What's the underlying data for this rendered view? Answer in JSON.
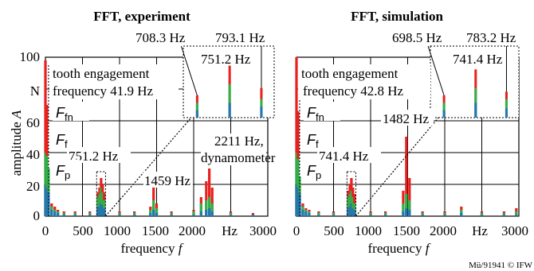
{
  "figure": {
    "ylabel_main": "amplitude ",
    "ylabel_var": "A",
    "xlabel_main": "frequency ",
    "xlabel_var": "f",
    "copyright": "Mü/91941 © IFW",
    "y_ticks": [
      "100",
      "N",
      "60",
      "40",
      "20",
      "0"
    ],
    "x_ticks": [
      "0",
      "500",
      "1000",
      "1500",
      "2000",
      "Hz",
      "3000"
    ]
  },
  "colors": {
    "fn": "#e8201e",
    "f": "#2db34a",
    "p": "#1f78b4",
    "grid": "#000000"
  },
  "chart_data": [
    {
      "type": "bar",
      "title": "FFT, experiment",
      "xlabel": "frequency f",
      "ylabel": "amplitude A",
      "xlim": [
        0,
        3000
      ],
      "ylim": [
        0,
        100
      ],
      "series_names": [
        "Ffn",
        "Ff",
        "Fp"
      ],
      "labels": {
        "mesh": "tooth engagement",
        "mesh2": "frequency 41.9 Hz",
        "mesh_line_y": "—",
        "peak_main": "751.2 Hz",
        "peak_2": "1459 Hz",
        "peak_3": "2211 Hz,",
        "peak_3b": "dynamometer",
        "inset_left": "708.3 Hz",
        "inset_right": "793.1 Hz",
        "inset_center": "751.2 Hz"
      },
      "peaks": [
        {
          "x": 0,
          "fn": 98,
          "f": 40,
          "p": 20
        },
        {
          "x": 20,
          "fn": 70,
          "f": 38,
          "p": 18
        },
        {
          "x": 42,
          "fn": 22,
          "f": 30,
          "p": 15
        },
        {
          "x": 84,
          "fn": 8,
          "f": 6,
          "p": 4
        },
        {
          "x": 126,
          "fn": 6,
          "f": 4,
          "p": 3
        },
        {
          "x": 168,
          "fn": 4,
          "f": 3,
          "p": 2
        },
        {
          "x": 250,
          "fn": 3,
          "f": 2,
          "p": 1
        },
        {
          "x": 400,
          "fn": 3,
          "f": 2,
          "p": 1
        },
        {
          "x": 600,
          "fn": 3,
          "f": 2,
          "p": 1
        },
        {
          "x": 708,
          "fn": 15,
          "f": 12,
          "p": 6
        },
        {
          "x": 730,
          "fn": 18,
          "f": 14,
          "p": 6
        },
        {
          "x": 751,
          "fn": 24,
          "f": 18,
          "p": 8
        },
        {
          "x": 772,
          "fn": 20,
          "f": 15,
          "p": 7
        },
        {
          "x": 793,
          "fn": 15,
          "f": 10,
          "p": 5
        },
        {
          "x": 1000,
          "fn": 3,
          "f": 2,
          "p": 1
        },
        {
          "x": 1200,
          "fn": 3,
          "f": 2,
          "p": 1
        },
        {
          "x": 1417,
          "fn": 6,
          "f": 4,
          "p": 2
        },
        {
          "x": 1459,
          "fn": 20,
          "f": 10,
          "p": 4
        },
        {
          "x": 1500,
          "fn": 8,
          "f": 5,
          "p": 2
        },
        {
          "x": 1700,
          "fn": 3,
          "f": 2,
          "p": 1
        },
        {
          "x": 2000,
          "fn": 4,
          "f": 3,
          "p": 1
        },
        {
          "x": 2100,
          "fn": 12,
          "f": 8,
          "p": 3
        },
        {
          "x": 2170,
          "fn": 22,
          "f": 10,
          "p": 4
        },
        {
          "x": 2211,
          "fn": 30,
          "f": 12,
          "p": 5
        },
        {
          "x": 2250,
          "fn": 18,
          "f": 8,
          "p": 3
        },
        {
          "x": 2500,
          "fn": 3,
          "f": 2,
          "p": 1
        },
        {
          "x": 2800,
          "fn": 2,
          "f": 1,
          "p": 1
        }
      ],
      "inset": {
        "xlim": [
          690,
          810
        ],
        "peaks": [
          {
            "x": 708.3,
            "fn": 12,
            "f": 8,
            "p": 4
          },
          {
            "x": 751.2,
            "fn": 28,
            "f": 18,
            "p": 8
          },
          {
            "x": 793.1,
            "fn": 16,
            "f": 10,
            "p": 6
          }
        ]
      }
    },
    {
      "type": "bar",
      "title": "FFT, simulation",
      "xlabel": "frequency f",
      "ylabel": "amplitude A",
      "xlim": [
        0,
        3000
      ],
      "ylim": [
        0,
        100
      ],
      "series_names": [
        "Ffn",
        "Ff",
        "Fp"
      ],
      "labels": {
        "mesh": "tooth engagement",
        "mesh2": "frequency 42.8 Hz",
        "peak_main": "741.4 Hz",
        "peak_2": "1482 Hz",
        "inset_left": "698.5 Hz",
        "inset_right": "783.2 Hz",
        "inset_center": "741.4 Hz"
      },
      "peaks": [
        {
          "x": 0,
          "fn": 100,
          "f": 40,
          "p": 20
        },
        {
          "x": 21,
          "fn": 66,
          "f": 36,
          "p": 18
        },
        {
          "x": 43,
          "fn": 20,
          "f": 25,
          "p": 14
        },
        {
          "x": 86,
          "fn": 8,
          "f": 6,
          "p": 4
        },
        {
          "x": 128,
          "fn": 5,
          "f": 4,
          "p": 3
        },
        {
          "x": 171,
          "fn": 4,
          "f": 3,
          "p": 2
        },
        {
          "x": 300,
          "fn": 3,
          "f": 2,
          "p": 1
        },
        {
          "x": 500,
          "fn": 3,
          "f": 2,
          "p": 1
        },
        {
          "x": 698,
          "fn": 16,
          "f": 12,
          "p": 5
        },
        {
          "x": 720,
          "fn": 20,
          "f": 14,
          "p": 6
        },
        {
          "x": 741,
          "fn": 24,
          "f": 16,
          "p": 8
        },
        {
          "x": 762,
          "fn": 18,
          "f": 12,
          "p": 5
        },
        {
          "x": 783,
          "fn": 14,
          "f": 8,
          "p": 4
        },
        {
          "x": 1000,
          "fn": 3,
          "f": 2,
          "p": 1
        },
        {
          "x": 1200,
          "fn": 3,
          "f": 2,
          "p": 1
        },
        {
          "x": 1440,
          "fn": 16,
          "f": 8,
          "p": 3
        },
        {
          "x": 1482,
          "fn": 50,
          "f": 14,
          "p": 5
        },
        {
          "x": 1525,
          "fn": 24,
          "f": 10,
          "p": 4
        },
        {
          "x": 1700,
          "fn": 3,
          "f": 2,
          "p": 1
        },
        {
          "x": 2000,
          "fn": 3,
          "f": 2,
          "p": 1
        },
        {
          "x": 2224,
          "fn": 6,
          "f": 4,
          "p": 2
        },
        {
          "x": 2500,
          "fn": 3,
          "f": 2,
          "p": 1
        },
        {
          "x": 2800,
          "fn": 3,
          "f": 2,
          "p": 1
        },
        {
          "x": 2966,
          "fn": 5,
          "f": 3,
          "p": 1
        }
      ],
      "inset": {
        "xlim": [
          680,
          800
        ],
        "peaks": [
          {
            "x": 698.5,
            "fn": 12,
            "f": 8,
            "p": 4
          },
          {
            "x": 741.4,
            "fn": 26,
            "f": 16,
            "p": 8
          },
          {
            "x": 783.2,
            "fn": 14,
            "f": 10,
            "p": 5
          }
        ]
      }
    }
  ]
}
